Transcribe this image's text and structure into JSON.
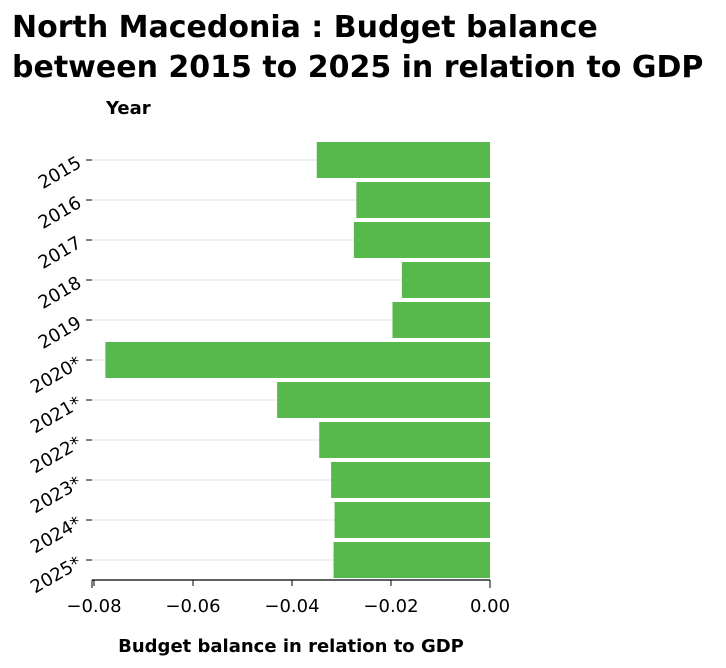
{
  "chart_data": {
    "type": "bar",
    "orientation": "horizontal",
    "title": "North Macedonia : Budget balance between 2015 to 2025 in relation to GDP",
    "xlabel": "Budget balance in relation to GDP",
    "ylabel": "Year",
    "categories": [
      "2015",
      "2016",
      "2017",
      "2018",
      "2019",
      "2020*",
      "2021*",
      "2022*",
      "2023*",
      "2024*",
      "2025*"
    ],
    "values": [
      -0.035,
      -0.027,
      -0.0275,
      -0.0178,
      -0.0197,
      -0.0777,
      -0.043,
      -0.0345,
      -0.0321,
      -0.0314,
      -0.0316
    ],
    "xlim": [
      -0.08,
      0.0
    ],
    "xticks": [
      "−0.08",
      "−0.06",
      "−0.04",
      "−0.02",
      "0.00"
    ],
    "bar_color": "#57b94c",
    "grid": "horizontal"
  }
}
